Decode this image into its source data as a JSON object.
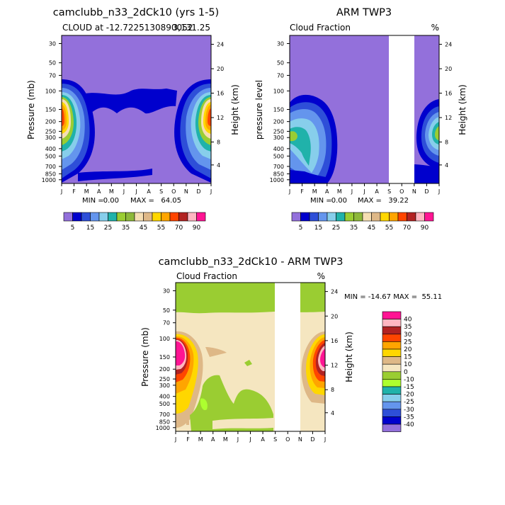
{
  "chart_data": [
    {
      "type": "heatmap",
      "title": "camclubb_n33_2dCk10 (yrs 1-5)",
      "subtitle_left": "CLOUD at -12.7225130890052",
      "subtitle_right": "3,131.25",
      "ylabel": "Pressure (mb)",
      "y2label": "Height (km)",
      "months": [
        "J",
        "F",
        "M",
        "A",
        "M",
        "J",
        "J",
        "A",
        "S",
        "O",
        "N",
        "D",
        "J"
      ],
      "pressure_ticks": [
        "30",
        "50",
        "70",
        "100",
        "150",
        "200",
        "250",
        "300",
        "400",
        "500",
        "700",
        "850",
        "1000"
      ],
      "height_ticks": [
        "24",
        "20",
        "16",
        "12",
        "8",
        "4"
      ],
      "min_label": "MIN = ",
      "min_value": "0.00",
      "max_label": "MAX = ",
      "max_value": "64.05",
      "colorbar_levels": [
        5,
        10,
        15,
        20,
        25,
        30,
        35,
        40,
        45,
        50,
        55,
        60,
        70,
        80,
        90
      ],
      "colorbar_labels": [
        "5",
        "15",
        "25",
        "35",
        "45",
        "55",
        "70",
        "90"
      ]
    },
    {
      "type": "heatmap",
      "title": "ARM TWP3",
      "subtitle_left": "Cloud Fraction",
      "units": "%",
      "ylabel": "pressure level",
      "y2label": "Height (km)",
      "months": [
        "J",
        "F",
        "M",
        "A",
        "M",
        "J",
        "J",
        "A",
        "S",
        "O",
        "N",
        "D",
        "J"
      ],
      "pressure_ticks": [
        "30",
        "50",
        "70",
        "100",
        "150",
        "200",
        "250",
        "300",
        "400",
        "500",
        "700",
        "850",
        "1000"
      ],
      "height_ticks": [
        "24",
        "20",
        "16",
        "12",
        "8",
        "4"
      ],
      "missing_months": [
        "O"
      ],
      "min_label": "MIN = ",
      "min_value": "0.00",
      "max_label": "MAX = ",
      "max_value": "39.22",
      "colorbar_levels": [
        5,
        10,
        15,
        20,
        25,
        30,
        35,
        40,
        45,
        50,
        55,
        60,
        70,
        80,
        90
      ],
      "colorbar_labels": [
        "5",
        "15",
        "25",
        "35",
        "45",
        "55",
        "70",
        "90"
      ]
    },
    {
      "type": "heatmap",
      "title": "camclubb_n33_2dCk10 - ARM TWP3",
      "subtitle_left": "Cloud Fraction",
      "units": "%",
      "ylabel": "Pressure (mb)",
      "y2label": "Height (km)",
      "months": [
        "J",
        "F",
        "M",
        "A",
        "M",
        "J",
        "J",
        "A",
        "S",
        "O",
        "N",
        "D",
        "J"
      ],
      "pressure_ticks": [
        "30",
        "50",
        "70",
        "100",
        "150",
        "200",
        "250",
        "300",
        "400",
        "500",
        "700",
        "850",
        "1000"
      ],
      "height_ticks": [
        "24",
        "20",
        "16",
        "12",
        "8",
        "4"
      ],
      "missing_months": [
        "O"
      ],
      "minmax_text": "MIN = -14.67 MAX =  55.11",
      "colorbar_levels": [
        40,
        35,
        30,
        25,
        20,
        15,
        10,
        0,
        -10,
        -15,
        -20,
        -25,
        -30,
        -35,
        -40
      ],
      "colorbar_labels": [
        "40",
        "35",
        "30",
        "25",
        "20",
        "15",
        "10",
        "0",
        "-10",
        "-15",
        "-20",
        "-25",
        "-30",
        "-35",
        "-40"
      ]
    }
  ],
  "palettes": {
    "absolute": [
      "#9370DB",
      "#0000CD",
      "#2E4FD8",
      "#6495ED",
      "#87CEEB",
      "#20B2AA",
      "#9ACD32",
      "#8DB83A",
      "#F5DEB3",
      "#DEB887",
      "#FFD700",
      "#FFA500",
      "#FF4500",
      "#B22222",
      "#FFB6C1",
      "#FF1493"
    ],
    "difference": [
      "#9370DB",
      "#0000CD",
      "#2E4FD8",
      "#6495ED",
      "#87CEEB",
      "#20B2AA",
      "#ADFF2F",
      "#9ACD32",
      "#F5E6C0",
      "#DEB887",
      "#FFD700",
      "#FFA500",
      "#FF4500",
      "#B22222",
      "#FFB6C1",
      "#FF1493"
    ]
  }
}
